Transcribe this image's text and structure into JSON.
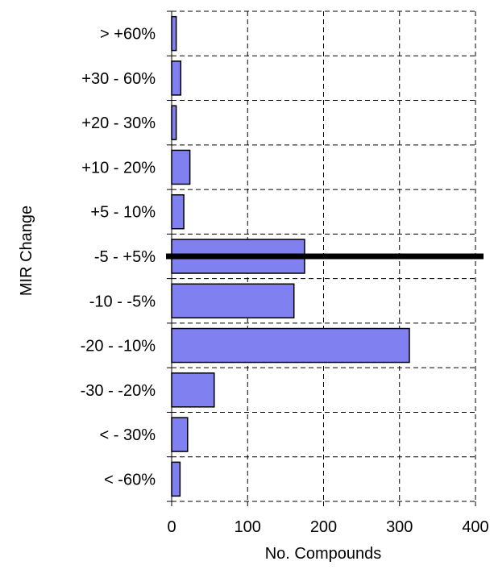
{
  "chart_data": {
    "type": "bar",
    "orientation": "horizontal",
    "categories": [
      "> +60%",
      "+30 - 60%",
      "+20 - 30%",
      "+10 - 20%",
      "+5 - 10%",
      "-5 - +5%",
      "-10 - -5%",
      "-20 - -10%",
      "-30 - -20%",
      "< - 30%",
      "< -60%"
    ],
    "values": [
      6,
      12,
      6,
      24,
      16,
      175,
      161,
      313,
      56,
      21,
      11
    ],
    "xlabel": "No. Compounds",
    "ylabel": "MIR Change",
    "xlim": [
      0,
      400
    ],
    "xticks": [
      "0",
      "100",
      "200",
      "300",
      "400"
    ],
    "grid": true,
    "grid_style": "dashed",
    "highlight_category": "-5 - +5%",
    "colors": {
      "bar_fill": "#8080f0",
      "bar_stroke": "#000000",
      "grid": "#000000",
      "highlight_line": "#000000"
    }
  }
}
